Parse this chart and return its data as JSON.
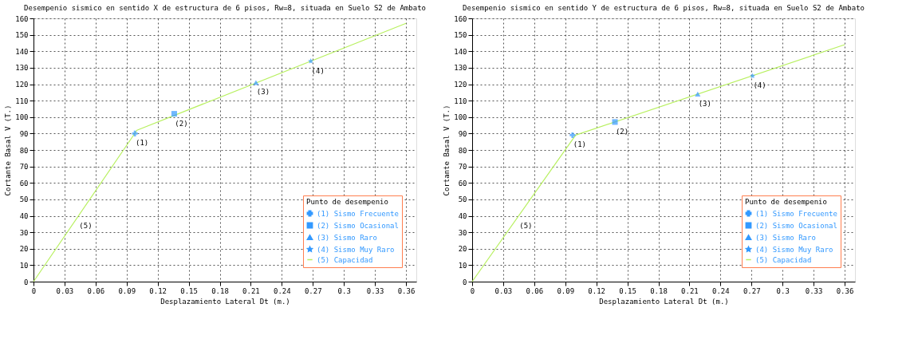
{
  "chart_data": [
    {
      "type": "line",
      "title": "Desempenio sismico en sentido X de estructura de 6 pisos, Rw=8, situada en Suelo S2 de Ambato",
      "xlabel": "Desplazamiento Lateral Dt (m.)",
      "ylabel": "Cortante Basal V (T.)",
      "legend_title": "Punto de desempenio",
      "legend": "bottom right",
      "grid": true,
      "line_style": "solid",
      "xlim": [
        0,
        0.37
      ],
      "xticks": [
        0,
        0.03,
        0.06,
        0.09,
        0.12,
        0.15,
        0.18,
        0.21,
        0.24,
        0.27,
        0.3,
        0.33,
        0.36
      ],
      "ylim": [
        0,
        160
      ],
      "yticks": [
        0,
        10,
        20,
        30,
        40,
        50,
        60,
        70,
        80,
        90,
        100,
        110,
        120,
        130,
        140,
        150,
        160
      ],
      "series": [
        {
          "name": "(1) Sismo Frecuente",
          "type": "scatter",
          "marker": "cross",
          "color": "#3399ff",
          "x": [
            0.098
          ],
          "values": [
            90
          ]
        },
        {
          "name": "(2) Sismo Ocasional",
          "type": "scatter",
          "marker": "square",
          "color": "#3399ff",
          "x": [
            0.136
          ],
          "values": [
            102
          ]
        },
        {
          "name": "(3) Sismo Raro",
          "type": "scatter",
          "marker": "triangle",
          "color": "#3399ff",
          "x": [
            0.215
          ],
          "values": [
            121
          ]
        },
        {
          "name": "(4) Sismo Muy Raro",
          "type": "scatter",
          "marker": "star",
          "color": "#3399ff",
          "x": [
            0.268
          ],
          "values": [
            134
          ]
        },
        {
          "name": "(5) Capacidad",
          "marker": "none",
          "color": "#b8f060",
          "x": [
            0,
            0.1,
            0.36
          ],
          "values": [
            0,
            92,
            157
          ]
        }
      ],
      "annotations": [
        {
          "text": "(1)",
          "x": 0.098,
          "y": 90
        },
        {
          "text": "(2)",
          "x": 0.136,
          "y": 102
        },
        {
          "text": "(3)",
          "x": 0.215,
          "y": 121
        },
        {
          "text": "(4)",
          "x": 0.268,
          "y": 134
        },
        {
          "text": "(5)",
          "x": 0.0435,
          "y": 40
        }
      ]
    },
    {
      "type": "line",
      "title": "Desempenio sismico en sentido Y de estructura de 6 pisos, Rw=8, situada en Suelo S2 de Ambato",
      "xlabel": "Desplazamiento Lateral Dt (m.)",
      "ylabel": "Cortante Basal V (T.)",
      "legend_title": "Punto de desempenio",
      "legend": "bottom right",
      "grid": true,
      "line_style": "solid",
      "xlim": [
        0,
        0.37
      ],
      "xticks": [
        0,
        0.03,
        0.06,
        0.09,
        0.12,
        0.15,
        0.18,
        0.21,
        0.24,
        0.27,
        0.3,
        0.33,
        0.36
      ],
      "ylim": [
        0,
        160
      ],
      "yticks": [
        0,
        10,
        20,
        30,
        40,
        50,
        60,
        70,
        80,
        90,
        100,
        110,
        120,
        130,
        140,
        150,
        160
      ],
      "series": [
        {
          "name": "(1) Sismo Frecuente",
          "type": "scatter",
          "marker": "cross",
          "color": "#3399ff",
          "x": [
            0.097
          ],
          "values": [
            89
          ]
        },
        {
          "name": "(2) Sismo Ocasional",
          "type": "scatter",
          "marker": "square",
          "color": "#3399ff",
          "x": [
            0.138
          ],
          "values": [
            97
          ]
        },
        {
          "name": "(3) Sismo Raro",
          "type": "scatter",
          "marker": "triangle",
          "color": "#3399ff",
          "x": [
            0.218
          ],
          "values": [
            114
          ]
        },
        {
          "name": "(4) Sismo Muy Raro",
          "type": "scatter",
          "marker": "star",
          "color": "#3399ff",
          "x": [
            0.271
          ],
          "values": [
            125
          ]
        },
        {
          "name": "(5) Capacidad",
          "marker": "none",
          "color": "#b8f060",
          "x": [
            0,
            0.1,
            0.36
          ],
          "values": [
            0,
            89,
            144
          ]
        }
      ],
      "annotations": [
        {
          "text": "(1)",
          "x": 0.097,
          "y": 89
        },
        {
          "text": "(2)",
          "x": 0.138,
          "y": 97
        },
        {
          "text": "(3)",
          "x": 0.218,
          "y": 114
        },
        {
          "text": "(4)",
          "x": 0.271,
          "y": 125
        },
        {
          "text": "(5)",
          "x": 0.045,
          "y": 40
        }
      ]
    }
  ]
}
